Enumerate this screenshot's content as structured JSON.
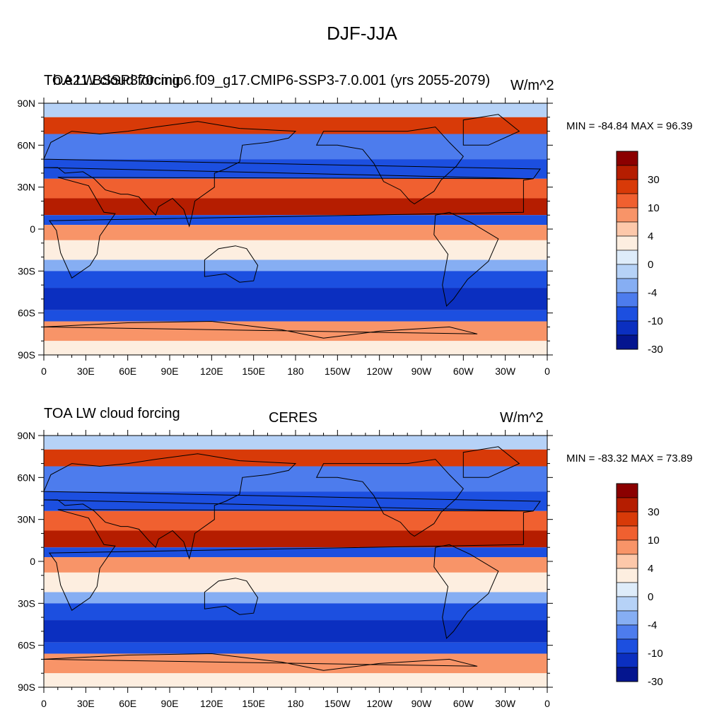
{
  "title": "DJF-JJA",
  "panels": [
    {
      "left_title": "TOA LW cloud forcing",
      "center_title": "b.e21.BSSP370cmip6.f09_g17.CMIP6-SSP3-7.0.001 (yrs 2055-2079)",
      "units": "W/m^2",
      "stats": "MIN = -84.84 MAX =  96.39"
    },
    {
      "left_title": "TOA LW cloud forcing",
      "center_title": "CERES",
      "units": "W/m^2",
      "stats": "MIN = -83.32 MAX =  73.89"
    }
  ],
  "lat_labels": [
    "90N",
    "60N",
    "30N",
    "0",
    "30S",
    "60S",
    "90S"
  ],
  "lon_labels": [
    "0",
    "30E",
    "60E",
    "90E",
    "120E",
    "150E",
    "180",
    "150W",
    "120W",
    "90W",
    "60W",
    "30W",
    "0"
  ],
  "colorbar_labels": [
    "30",
    "10",
    "4",
    "0",
    "-4",
    "-10",
    "-30"
  ],
  "colorbar_colors": [
    "#8b0000",
    "#b51d00",
    "#d83a08",
    "#f06030",
    "#f89468",
    "#fdc8aa",
    "#fdeee0",
    "#deecfa",
    "#b6d2f7",
    "#86aef3",
    "#4d7ced",
    "#1c4fe0",
    "#0b2fc0",
    "#04158f"
  ],
  "colors": {
    "background": "#ffffff",
    "text": "#000000",
    "missing": "#ffffff"
  }
}
